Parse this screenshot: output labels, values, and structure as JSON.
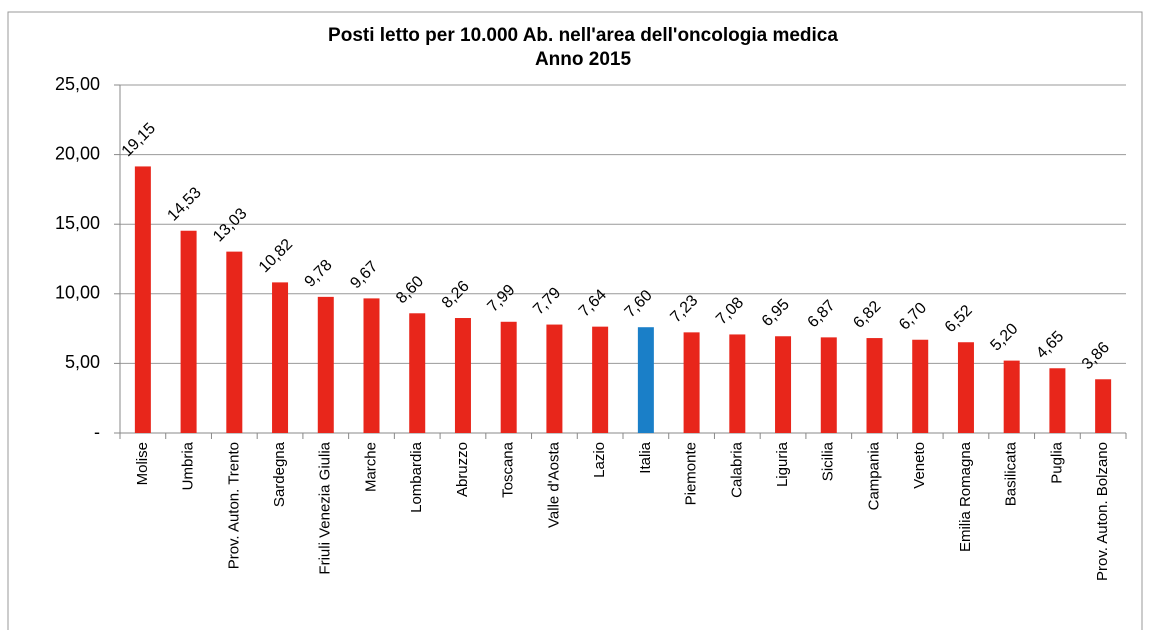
{
  "chart_data": {
    "type": "bar",
    "title": "Posti letto per 10.000 Ab. nell'area dell'oncologia medica",
    "subtitle": "Anno 2015",
    "categories": [
      "Molise",
      "Umbria",
      "Prov. Auton. Trento",
      "Sardegna",
      "Friuli Venezia Giulia",
      "Marche",
      "Lombardia",
      "Abruzzo",
      "Toscana",
      "Valle d'Aosta",
      "Lazio",
      "Italia",
      "Piemonte",
      "Calabria",
      "Liguria",
      "Sicilia",
      "Campania",
      "Veneto",
      "Emilia Romagna",
      "Basilicata",
      "Puglia",
      "Prov. Auton. Bolzano"
    ],
    "values": [
      19.15,
      14.53,
      13.03,
      10.82,
      9.78,
      9.67,
      8.6,
      8.26,
      7.99,
      7.79,
      7.64,
      7.6,
      7.23,
      7.08,
      6.95,
      6.87,
      6.82,
      6.7,
      6.52,
      5.2,
      4.65,
      3.86
    ],
    "value_labels": [
      "19,15",
      "14,53",
      "13,03",
      "10,82",
      "9,78",
      "9,67",
      "8,60",
      "8,26",
      "7,99",
      "7,79",
      "7,64",
      "7,60",
      "7,23",
      "7,08",
      "6,95",
      "6,87",
      "6,82",
      "6,70",
      "6,52",
      "5,20",
      "4,65",
      "3,86"
    ],
    "colors": [
      "#e8261b",
      "#e8261b",
      "#e8261b",
      "#e8261b",
      "#e8261b",
      "#e8261b",
      "#e8261b",
      "#e8261b",
      "#e8261b",
      "#e8261b",
      "#e8261b",
      "#1a7fc8",
      "#e8261b",
      "#e8261b",
      "#e8261b",
      "#e8261b",
      "#e8261b",
      "#e8261b",
      "#e8261b",
      "#e8261b",
      "#e8261b",
      "#e8261b"
    ],
    "ylim": [
      0,
      25
    ],
    "yticks": [
      {
        "value": 0,
        "label": "-"
      },
      {
        "value": 5,
        "label": "5,00"
      },
      {
        "value": 10,
        "label": "10,00"
      },
      {
        "value": 15,
        "label": "15,00"
      },
      {
        "value": 20,
        "label": "20,00"
      },
      {
        "value": 25,
        "label": "25,00"
      }
    ],
    "grid": true
  }
}
